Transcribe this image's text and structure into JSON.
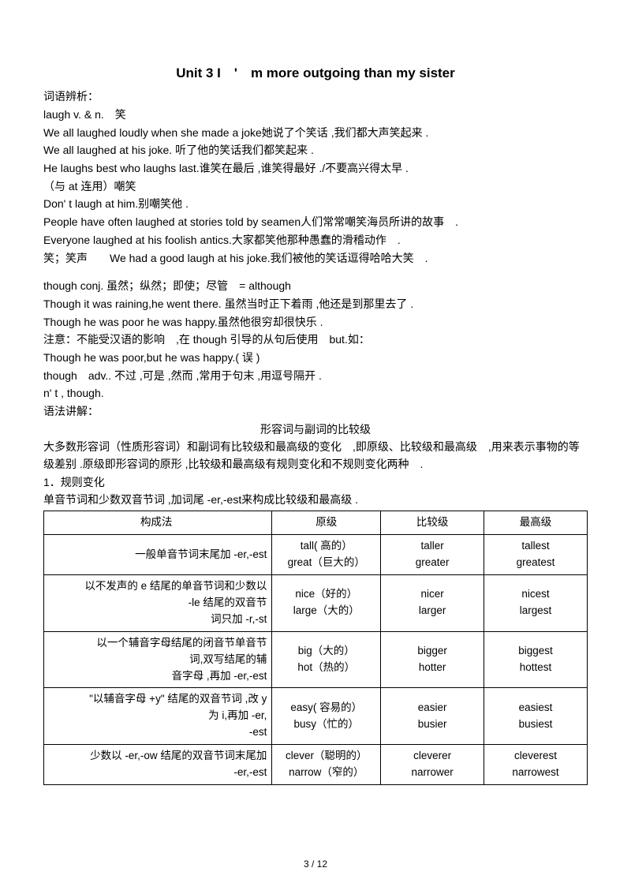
{
  "title": "Unit 3 I　'　m more outgoing than my sister",
  "p1": "词语辨析：",
  "p2": "laugh v. & n.　笑",
  "p3": "We all laughed loudly when she made a joke她说了个笑话 ,我们都大声笑起来 .",
  "p4": "We all laughed at his joke. 听了他的笑话我们都笑起来 .",
  "p5": "He laughs best who laughs last.谁笑在最后 ,谁笑得最好 ./不要高兴得太早 .",
  "p6": "（与 at 连用）嘲笑",
  "p7": "Don' t laugh at him.别嘲笑他 .",
  "p8": "People have often laughed at stories told by seamen人们常常嘲笑海员所讲的故事　.",
  "p9": "Everyone laughed at his foolish antics.大家都笑他那种愚蠢的滑稽动作　.",
  "p10": "笑；笑声　　We had a good laugh at his joke.我们被他的笑话逗得哈哈大笑　.",
  "p11": "though conj. 虽然；纵然；即使；尽管　= although",
  "p12": "Though it was raining,he went there. 虽然当时正下着雨 ,他还是到那里去了 .",
  "p13": "Though he was poor he was happy.虽然他很穷却很快乐 .",
  "p14": "注意：不能受汉语的影响　,在 though 引导的从句后使用　but.如：",
  "p15": "Though he was poor,but he was happy.( 误 )",
  "p16": "though　adv.. 不过 ,可是 ,然而 ,常用于句末 ,用逗号隔开 .",
  "p17": "n' t , though.",
  "p18": "语法讲解：",
  "p19": "形容词与副词的比较级",
  "p20": "大多数形容词（性质形容词）和副词有比较级和最高级的变化　,即原级、比较级和最高级　,用来表示事物的等级差别 .原级即形容词的原形 ,比较级和最高级有规则变化和不规则变化两种　.",
  "p21": "1．规则变化",
  "p22": "单音节词和少数双音节词 ,加词尾 -er,-est来构成比较级和最高级 .",
  "th1": "构成法",
  "th2": "原级",
  "th3": "比较级",
  "th4": "最高级",
  "r1c1": "一般单音节词末尾加 -er,-est",
  "r1c2": "tall( 高的）\ngreat（巨大的）",
  "r1c3": "taller\ngreater",
  "r1c4": "tallest\ngreatest",
  "r2c1": "以不发声的 e 结尾的单音节词和少数以\n-le 结尾的双音节\n词只加 -r,-st",
  "r2c2": "nice（好的）\nlarge（大的）",
  "r2c3": "nicer\nlarger",
  "r2c4": "nicest\nlargest",
  "r3c1": "以一个辅音字母结尾的闭音节单音节\n词,双写结尾的辅\n音字母 ,再加 -er,-est",
  "r3c2": "big（大的）\nhot（热的）",
  "r3c3": "bigger\nhotter",
  "r3c4": "biggest\nhottest",
  "r4c1": "\"以辅音字母 +y\" 结尾的双音节词 ,改 y\n为 i,再加 -er,\n-est",
  "r4c2": "easy( 容易的）\nbusy（忙的）",
  "r4c3": "easier\nbusier",
  "r4c4": "easiest\nbusiest",
  "r5c1": "少数以 -er,-ow 结尾的双音节词末尾加\n-er,-est",
  "r5c2": "clever（聪明的）\nnarrow（窄的）",
  "r5c3": "cleverer\nnarrower",
  "r5c4": "cleverest\nnarrowest",
  "footer": "3 / 12"
}
